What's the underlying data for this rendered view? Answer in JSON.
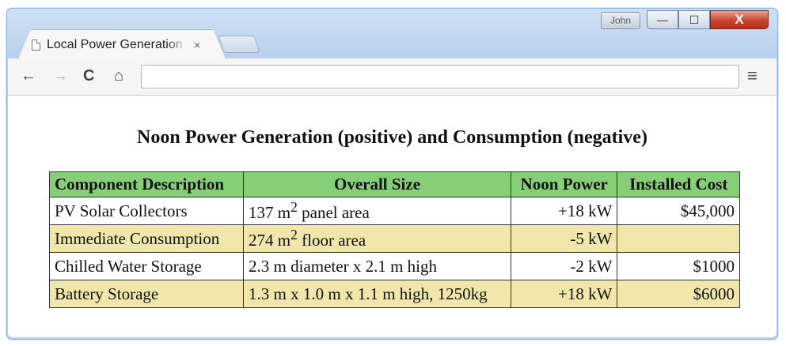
{
  "window": {
    "profile_name": "John",
    "min_glyph": "—",
    "max_glyph": "☐",
    "close_glyph": "X"
  },
  "tab": {
    "title": "Local Power Generation",
    "close_glyph": "×"
  },
  "toolbar": {
    "back_glyph": "←",
    "forward_glyph": "→",
    "reload_glyph": "C",
    "home_glyph": "⌂",
    "address_value": "",
    "menu_glyph": "≡"
  },
  "page": {
    "heading": "Noon Power Generation (positive) and Consumption (negative)",
    "table": {
      "headers": [
        "Component Description",
        "Overall Size",
        "Noon Power",
        "Installed Cost"
      ],
      "rows": [
        {
          "component": "PV Solar Collectors",
          "size_prefix": "137 m",
          "size_sup": "2",
          "size_suffix": " panel area",
          "power": "+18 kW",
          "cost": "$45,000"
        },
        {
          "component": "Immediate Consumption",
          "size_prefix": "274 m",
          "size_sup": "2",
          "size_suffix": " floor area",
          "power": "-5 kW",
          "cost": ""
        },
        {
          "component": "Chilled Water Storage",
          "size": "2.3 m diameter x 2.1 m high",
          "power": "-2 kW",
          "cost": "$1000"
        },
        {
          "component": "Battery Storage",
          "size": "1.3 m x 1.0 m x 1.1 m high, 1250kg",
          "power": "+18 kW",
          "cost": "$6000"
        }
      ]
    }
  },
  "colors": {
    "header_green": "#86cf78",
    "row_yellow": "#f1e7ab",
    "frame_blue": "#b9d1ee"
  }
}
